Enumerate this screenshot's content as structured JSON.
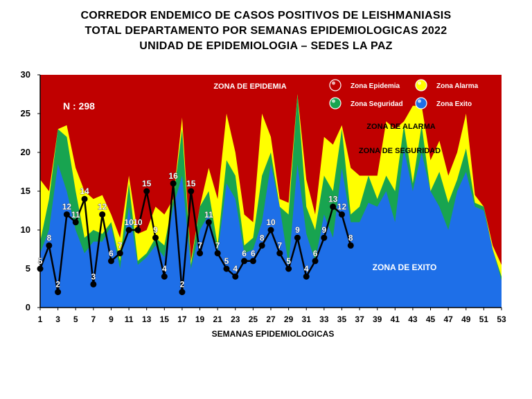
{
  "titles": {
    "line1": "CORREDOR ENDEMICO DE CASOS POSITIVOS DE LEISHMANIASIS",
    "line2": "TOTAL DEPARTAMENTO POR SEMANAS EPIDEMIOLOGICAS 2022",
    "line3": "UNIDAD DE EPIDEMIOLOGIA – SEDES LA PAZ"
  },
  "colors": {
    "epidemia": "#C00000",
    "alarma": "#FFFF00",
    "seguridad": "#18A450",
    "exito": "#1E6FE8",
    "line": "#000000"
  },
  "chart_data": {
    "type": "area",
    "title": "CORREDOR ENDEMICO DE CASOS POSITIVOS DE LEISHMANIASIS",
    "xlabel": "SEMANAS EPIDEMIOLOGICAS",
    "ylabel": "",
    "ylim": [
      0,
      30
    ],
    "xlim": [
      1,
      53
    ],
    "yticks": [
      0,
      5,
      10,
      15,
      20,
      25,
      30
    ],
    "xticks": [
      1,
      3,
      5,
      7,
      9,
      11,
      13,
      15,
      17,
      19,
      21,
      23,
      25,
      27,
      29,
      31,
      33,
      35,
      37,
      39,
      41,
      43,
      45,
      47,
      49,
      51,
      53
    ],
    "annotation_n": "N : 298",
    "zone_labels": {
      "epidemia": "ZONA DE EPIDEMIA",
      "alarma": "ZONA DE ALARMA",
      "seguridad": "ZONA DE  SEGURIDAD",
      "exito": "ZONA DE  EXITO"
    },
    "legend": [
      {
        "name": "Zona Epidemia",
        "key": "epidemia"
      },
      {
        "name": "Zona Alarma",
        "key": "alarma"
      },
      {
        "name": "Zona Seguridad",
        "key": "seguridad"
      },
      {
        "name": "Zona Exito",
        "key": "exito"
      }
    ],
    "legend_position": "top-right",
    "weeks": [
      1,
      2,
      3,
      4,
      5,
      6,
      7,
      8,
      9,
      10,
      11,
      12,
      13,
      14,
      15,
      16,
      17,
      18,
      19,
      20,
      21,
      22,
      23,
      24,
      25,
      26,
      27,
      28,
      29,
      30,
      31,
      32,
      33,
      34,
      35,
      36,
      37,
      38,
      39,
      40,
      41,
      42,
      43,
      44,
      45,
      46,
      47,
      48,
      49,
      50,
      51,
      52,
      53
    ],
    "exito_upper": [
      7,
      10,
      18.5,
      15,
      10,
      7,
      8.5,
      8.5,
      10.5,
      5,
      13,
      5.5,
      6.5,
      8,
      6.5,
      13,
      17,
      5,
      10,
      12,
      7,
      16,
      14,
      7,
      7.5,
      11,
      18.5,
      13,
      5.5,
      18.5,
      9.5,
      6,
      12,
      9,
      18,
      11,
      11,
      13.5,
      13,
      15,
      11,
      20.5,
      15,
      20,
      15,
      13,
      10,
      15,
      17.5,
      13,
      12.5,
      7.5,
      3.5
    ],
    "seguridad_upper": [
      8.5,
      14,
      23,
      22,
      15,
      9,
      10,
      9.5,
      11,
      6,
      16,
      6,
      7,
      9,
      8,
      14,
      23,
      5.5,
      13,
      15,
      8,
      19,
      17,
      8,
      9,
      17,
      20,
      13,
      12,
      27.5,
      13,
      10,
      17,
      15,
      23,
      12,
      13,
      17,
      14,
      17,
      15,
      23.5,
      16,
      23.5,
      15,
      17.5,
      13.5,
      16.5,
      20.5,
      13.5,
      13,
      7.5,
      4
    ],
    "alarma_upper": [
      16.5,
      15,
      23,
      23.5,
      18,
      15,
      14,
      14.5,
      12,
      9,
      17,
      9.5,
      10,
      13,
      12,
      14,
      24.5,
      6,
      13,
      18,
      14,
      25,
      20,
      12,
      11,
      25,
      22,
      14,
      13.5,
      27.5,
      16.5,
      12,
      22,
      21,
      23.5,
      18,
      17,
      17,
      17,
      24,
      23,
      24,
      26,
      26,
      19,
      21.5,
      17,
      20,
      25,
      14.5,
      13,
      8,
      5.5
    ],
    "cases_weeks": [
      1,
      2,
      3,
      4,
      5,
      6,
      7,
      8,
      9,
      10,
      11,
      12,
      13,
      14,
      15,
      16,
      17,
      18,
      19,
      20,
      21,
      22,
      23,
      24,
      25,
      26,
      27,
      28,
      29,
      30,
      31,
      32,
      33,
      34,
      35,
      36
    ],
    "cases": [
      5,
      8,
      2,
      12,
      11,
      14,
      3,
      12,
      6,
      7,
      10,
      10,
      15,
      9,
      4,
      16,
      2,
      15,
      7,
      11,
      7,
      5,
      4,
      6,
      6,
      8,
      10,
      7,
      5,
      9,
      4,
      6,
      9,
      13,
      12,
      8
    ]
  }
}
